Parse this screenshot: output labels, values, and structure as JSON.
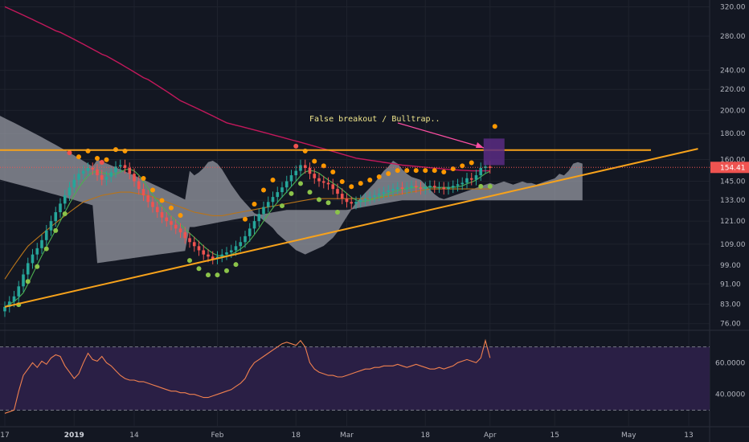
{
  "chart_data": [
    {
      "type": "candlestick",
      "panel": "price",
      "x_axis": {
        "tick_labels": [
          "17",
          "2019",
          "14",
          "Feb",
          "18",
          "Mar",
          "18",
          "Apr",
          "15",
          "May",
          "13"
        ],
        "tick_days": [
          0,
          15,
          28,
          46,
          63,
          74,
          91,
          105,
          119,
          135,
          148
        ]
      },
      "y_axis": {
        "scale": "log",
        "ylim": [
          74,
          330
        ],
        "tick_labels": [
          "320.00",
          "280.00",
          "240.00",
          "220.00",
          "200.00",
          "180.00",
          "160.00",
          "145.00",
          "133.00",
          "121.00",
          "109.00",
          "99.00",
          "91.00",
          "83.00",
          "76.00"
        ],
        "tick_values": [
          320,
          280,
          240,
          220,
          200,
          180,
          160,
          145,
          133,
          121,
          109,
          99,
          91,
          83,
          76
        ]
      },
      "last_price_label": "154.41",
      "last_price": 154.41,
      "annotation": "False breakout / Bulltrap..",
      "resistance_level": 167,
      "colors": {
        "up": "#26a69a",
        "down": "#ef5350",
        "resistance": "#f7a21b",
        "trendline": "#f7a21b",
        "ma_long": "#c2185b",
        "ma_mid": "#b8741a",
        "ma_short": "#4caf50",
        "cloud": "#9598a1",
        "sar_bull": "#8bc34a",
        "sar_bear": "#ff9800",
        "sar_peak": "#ef5350",
        "highlight": "#5b2c83"
      },
      "close": [
        82,
        84,
        86,
        90,
        95,
        100,
        104,
        107,
        111,
        116,
        121,
        126,
        131,
        136,
        141,
        146,
        150,
        152,
        154,
        153,
        149,
        146,
        148,
        151,
        155,
        156,
        154,
        150,
        145,
        140,
        136,
        132,
        129,
        126,
        123,
        121,
        119,
        117,
        115,
        112,
        110,
        108,
        106,
        104,
        103,
        102,
        103,
        104,
        105,
        106,
        108,
        110,
        113,
        117,
        121,
        125,
        129,
        132,
        135,
        138,
        141,
        145,
        149,
        152,
        156,
        154,
        150,
        147,
        145,
        144,
        143,
        140,
        137,
        134,
        132,
        131,
        132,
        133,
        134,
        135,
        136,
        137,
        138,
        139,
        140,
        141,
        140,
        141,
        142,
        141,
        140,
        141,
        142,
        141,
        141,
        140,
        141,
        142,
        143,
        144,
        147,
        146,
        149,
        154,
        155,
        154
      ],
      "ma_long": [
        320,
        317,
        314,
        311,
        308,
        305,
        302,
        299,
        296,
        293,
        290,
        287,
        285,
        282,
        279,
        276,
        273,
        270,
        267,
        264,
        261,
        258,
        256,
        253,
        250,
        247,
        244,
        241,
        238,
        235,
        232,
        230,
        227,
        224,
        221,
        218,
        215,
        212,
        209,
        207,
        205,
        203,
        201,
        199,
        197,
        195,
        193,
        191,
        189,
        188,
        187,
        186,
        185,
        184,
        183,
        182,
        181,
        180,
        179,
        178,
        177,
        176,
        175,
        174,
        173,
        172,
        171,
        170,
        169,
        168,
        167,
        166,
        165,
        164,
        163,
        162,
        161,
        160.5,
        160,
        159.5,
        159,
        158.5,
        158,
        157.5,
        157,
        156.5,
        156,
        155.7,
        155.4,
        155.1,
        154.8,
        154.5,
        154.2,
        153.9,
        153.6,
        153.3,
        153,
        152.8,
        152.6,
        152.4,
        152.2,
        152,
        152,
        152,
        152,
        152
      ],
      "ma_mid": [
        93,
        96,
        99,
        102,
        105,
        108,
        110,
        112,
        114,
        116,
        118,
        120,
        122,
        124,
        126,
        128,
        130,
        132,
        133,
        134,
        135,
        136,
        136.5,
        137,
        137.5,
        138,
        138,
        138,
        137.5,
        137,
        136.5,
        136,
        135,
        134,
        133,
        132,
        131,
        130,
        129,
        128,
        127,
        126,
        125.5,
        125,
        124.5,
        124,
        124,
        124,
        124.5,
        125,
        125.5,
        126,
        126.5,
        127,
        127.5,
        128,
        128.5,
        129,
        129.5,
        130,
        130.5,
        131,
        131.5,
        132,
        132.5,
        133,
        133.5,
        134,
        134,
        134,
        134,
        134,
        134,
        134,
        134,
        134,
        134,
        134,
        134,
        134,
        134,
        134.5,
        135,
        135.5,
        136,
        136.5,
        137,
        137.5,
        138,
        138.5,
        139,
        139.5,
        140,
        140,
        140,
        140,
        140,
        140,
        140,
        140,
        140,
        140,
        140,
        140,
        140,
        140
      ],
      "trend_start_day": 0,
      "trend_start_price": 82,
      "trend_end_day": 150,
      "trend_end_price": 168,
      "sar_bear_days": [
        16,
        18,
        20,
        22,
        24,
        26,
        30,
        32,
        34,
        36,
        38,
        52,
        54,
        56,
        58,
        65,
        67,
        69,
        71,
        73,
        75,
        77,
        79,
        81,
        83,
        85,
        87,
        89,
        91,
        93,
        95,
        97,
        99,
        101
      ],
      "sar_bull_days": [
        3,
        5,
        7,
        9,
        11,
        13,
        40,
        42,
        44,
        46,
        48,
        50,
        60,
        62,
        64,
        66,
        68,
        70,
        72,
        103,
        105
      ],
      "sar_peak_days": [
        14,
        21,
        63
      ],
      "sar_peak_prices": [
        165,
        158,
        170
      ],
      "rsi": {
        "ylim": [
          20,
          80
        ],
        "levels": [
          70,
          30
        ],
        "tick_labels": [
          "60.0000",
          "40.0000"
        ],
        "tick_values": [
          60,
          40
        ],
        "line_color": "#f0804f",
        "band_color": "#2a1f45",
        "values": [
          28,
          29,
          30,
          42,
          52,
          56,
          60,
          57,
          61,
          59,
          63,
          65,
          64,
          58,
          54,
          50,
          53,
          60,
          66,
          62,
          61,
          64,
          60,
          58,
          55,
          52,
          50,
          49,
          49,
          48,
          48,
          47,
          46,
          45,
          44,
          43,
          42,
          42,
          41,
          41,
          40,
          40,
          39,
          38,
          38,
          39,
          40,
          41,
          42,
          43,
          45,
          47,
          50,
          56,
          60,
          62,
          64,
          66,
          68,
          70,
          72,
          73,
          72,
          71,
          74,
          70,
          60,
          56,
          54,
          53,
          52,
          52,
          51,
          51,
          52,
          53,
          54,
          55,
          56,
          56,
          57,
          57,
          58,
          58,
          58,
          59,
          58,
          57,
          58,
          59,
          58,
          57,
          56,
          56,
          57,
          56,
          57,
          58,
          60,
          61,
          62,
          61,
          60,
          63,
          74,
          63
        ]
      }
    }
  ]
}
